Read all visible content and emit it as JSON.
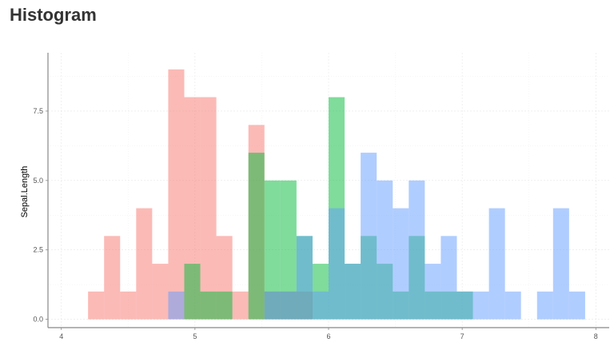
{
  "title": "Histogram",
  "chart_data": {
    "type": "histogram",
    "ylabel": "Sepal.Length",
    "xlabel": "",
    "xlim": [
      3.9,
      8.1
    ],
    "ylim": [
      -0.3,
      9.6
    ],
    "grid": true,
    "x_ticks": [
      {
        "value": 4,
        "label": "4"
      },
      {
        "value": 5,
        "label": "5"
      },
      {
        "value": 6,
        "label": "6"
      },
      {
        "value": 7,
        "label": "7"
      },
      {
        "value": 8,
        "label": "8"
      }
    ],
    "y_ticks": [
      {
        "value": 0,
        "label": "0.0"
      },
      {
        "value": 2.5,
        "label": "2.5"
      },
      {
        "value": 5,
        "label": "5.0"
      },
      {
        "value": 7.5,
        "label": "7.5"
      }
    ],
    "bin_width": 0.12,
    "series": [
      {
        "color": "#F8766D",
        "bins": [
          {
            "x0": 4.2,
            "count": 1
          },
          {
            "x0": 4.32,
            "count": 3
          },
          {
            "x0": 4.44,
            "count": 1
          },
          {
            "x0": 4.56,
            "count": 4
          },
          {
            "x0": 4.68,
            "count": 2
          },
          {
            "x0": 4.8,
            "count": 9
          },
          {
            "x0": 4.92,
            "count": 8
          },
          {
            "x0": 5.04,
            "count": 8
          },
          {
            "x0": 5.16,
            "count": 3
          },
          {
            "x0": 5.28,
            "count": 1
          },
          {
            "x0": 5.4,
            "count": 7
          },
          {
            "x0": 5.52,
            "count": 1
          },
          {
            "x0": 5.64,
            "count": 1
          },
          {
            "x0": 5.76,
            "count": 1
          }
        ]
      },
      {
        "color": "#00BA38",
        "bins": [
          {
            "x0": 4.92,
            "count": 2
          },
          {
            "x0": 5.04,
            "count": 1
          },
          {
            "x0": 5.16,
            "count": 1
          },
          {
            "x0": 5.4,
            "count": 6
          },
          {
            "x0": 5.52,
            "count": 5
          },
          {
            "x0": 5.64,
            "count": 5
          },
          {
            "x0": 5.76,
            "count": 3
          },
          {
            "x0": 5.88,
            "count": 2
          },
          {
            "x0": 6.0,
            "count": 8
          },
          {
            "x0": 6.12,
            "count": 2
          },
          {
            "x0": 6.24,
            "count": 3
          },
          {
            "x0": 6.36,
            "count": 2
          },
          {
            "x0": 6.48,
            "count": 1
          },
          {
            "x0": 6.6,
            "count": 3
          },
          {
            "x0": 6.72,
            "count": 1
          },
          {
            "x0": 6.84,
            "count": 1
          },
          {
            "x0": 6.96,
            "count": 1
          }
        ]
      },
      {
        "color": "#619CFF",
        "bins": [
          {
            "x0": 4.8,
            "count": 1
          },
          {
            "x0": 5.52,
            "count": 1
          },
          {
            "x0": 5.64,
            "count": 1
          },
          {
            "x0": 5.76,
            "count": 3
          },
          {
            "x0": 5.88,
            "count": 1
          },
          {
            "x0": 6.0,
            "count": 4
          },
          {
            "x0": 6.12,
            "count": 2
          },
          {
            "x0": 6.24,
            "count": 6
          },
          {
            "x0": 6.36,
            "count": 5
          },
          {
            "x0": 6.48,
            "count": 4
          },
          {
            "x0": 6.6,
            "count": 5
          },
          {
            "x0": 6.72,
            "count": 2
          },
          {
            "x0": 6.84,
            "count": 3
          },
          {
            "x0": 6.96,
            "count": 1
          },
          {
            "x0": 7.08,
            "count": 1
          },
          {
            "x0": 7.2,
            "count": 4
          },
          {
            "x0": 7.32,
            "count": 1
          },
          {
            "x0": 7.56,
            "count": 1
          },
          {
            "x0": 7.68,
            "count": 4
          },
          {
            "x0": 7.8,
            "count": 1
          }
        ]
      }
    ]
  }
}
